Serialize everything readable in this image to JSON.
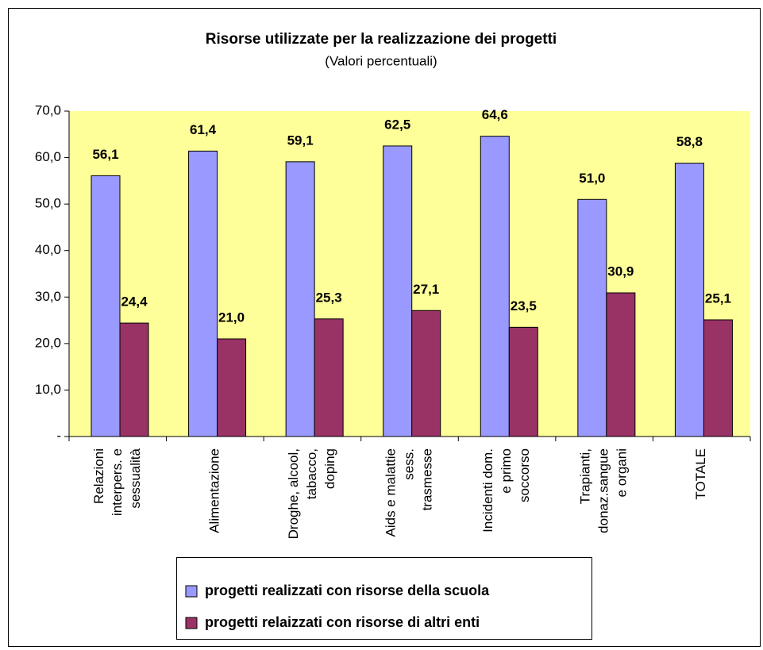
{
  "chart_data": {
    "type": "bar",
    "title": "Risorse utilizzate per la realizzazione dei progetti",
    "subtitle": "(Valori percentuali)",
    "categories": [
      [
        "Relazioni",
        "interpers. e",
        "sessualità"
      ],
      [
        "Alimentazione"
      ],
      [
        "Droghe, alcool,",
        "tabacco,",
        "doping"
      ],
      [
        "Aids e malattie",
        "sess.",
        "trasmesse"
      ],
      [
        "Incidenti dom.",
        "e primo",
        "soccorso"
      ],
      [
        "Trapianti,",
        "donaz.sangue",
        "e organi"
      ],
      [
        "TOTALE"
      ]
    ],
    "series": [
      {
        "name": "progetti realizzati con risorse della scuola",
        "color": "#9999ff",
        "values": [
          56.1,
          61.4,
          59.1,
          62.5,
          64.6,
          51.0,
          58.8
        ],
        "value_labels": [
          "56,1",
          "61,4",
          "59,1",
          "62,5",
          "64,6",
          "51,0",
          "58,8"
        ]
      },
      {
        "name": "progetti relaizzati con risorse di altri enti",
        "color": "#993366",
        "values": [
          24.4,
          21.0,
          25.3,
          27.1,
          23.5,
          30.9,
          25.1
        ],
        "value_labels": [
          "24,4",
          "21,0",
          "25,3",
          "27,1",
          "23,5",
          "30,9",
          "25,1"
        ]
      }
    ],
    "ylim": [
      0,
      70
    ],
    "yticks": [
      {
        "value": 0,
        "label": "-"
      },
      {
        "value": 10,
        "label": "10,0"
      },
      {
        "value": 20,
        "label": "20,0"
      },
      {
        "value": 30,
        "label": "30,0"
      },
      {
        "value": 40,
        "label": "40,0"
      },
      {
        "value": 50,
        "label": "50,0"
      },
      {
        "value": 60,
        "label": "60,0"
      },
      {
        "value": 70,
        "label": "70,0"
      }
    ],
    "plot_background": "#ffff99",
    "legend": "bottom"
  }
}
